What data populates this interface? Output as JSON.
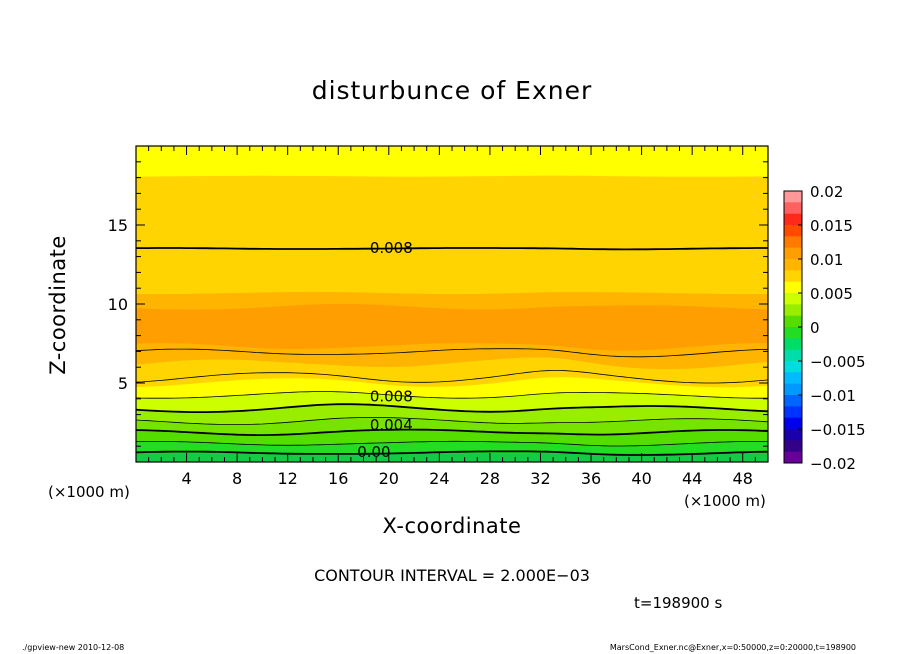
{
  "chart_data": {
    "type": "heatmap",
    "title": "disturbunce of Exner",
    "xlabel": "X-coordinate",
    "ylabel": "Z-coordinate",
    "x_unit": "(×1000 m)",
    "xlim": [
      0,
      50
    ],
    "ylim": [
      0,
      20
    ],
    "x_ticks": [
      4,
      8,
      12,
      16,
      20,
      24,
      28,
      32,
      36,
      40,
      44,
      48
    ],
    "y_ticks": [
      5,
      10,
      15
    ],
    "colorbar": {
      "range": [
        -0.02,
        0.02
      ],
      "tick_labels": [
        "0.02",
        "0.015",
        "0.01",
        "0.005",
        "0",
        "−0.005",
        "−0.01",
        "−0.015",
        "−0.02"
      ],
      "colors": [
        "#ff9999",
        "#ff6060",
        "#ff2a1a",
        "#ff4a00",
        "#ff7a00",
        "#ff9e00",
        "#ffb400",
        "#ffd400",
        "#ffff00",
        "#ccff00",
        "#99ee00",
        "#55dd00",
        "#22dd22",
        "#00dd66",
        "#00ddaa",
        "#00dddd",
        "#00bbff",
        "#0099ff",
        "#0066ff",
        "#0033ff",
        "#0000ee",
        "#1a00aa",
        "#330088",
        "#660099"
      ]
    },
    "contour_labels": [
      {
        "text": "0.008",
        "x": 18.5,
        "z": 13.6
      },
      {
        "text": "0.008",
        "x": 18.5,
        "z": 4.2
      },
      {
        "text": "0.004",
        "x": 18.5,
        "z": 2.4
      },
      {
        "text": "0.00",
        "x": 17.5,
        "z": 0.7
      }
    ],
    "contour_interval": "CONTOUR INTERVAL = 2.000E−03",
    "time": "t=198900 s"
  },
  "footer": {
    "left": "./gpview-new  2010-12-08",
    "right": "MarsCond_Exner.nc@Exner,x=0:50000,z=0:20000,t=198900"
  }
}
